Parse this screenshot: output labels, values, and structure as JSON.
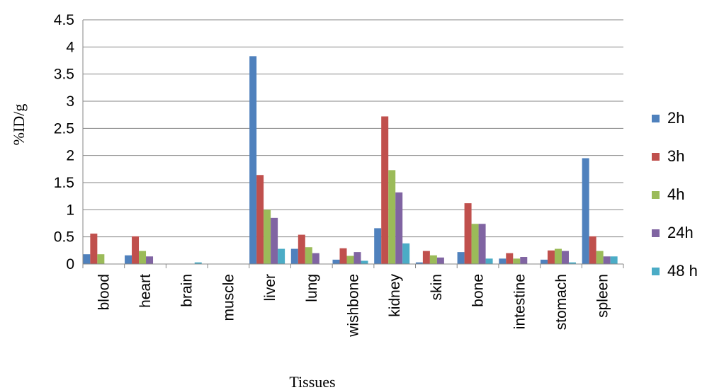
{
  "chart_data": {
    "type": "bar",
    "title": "",
    "xlabel": "Tissues",
    "ylabel": "%ID/g",
    "ylim": [
      0,
      4.5
    ],
    "yticks": [
      "0",
      "0.5",
      "1",
      "1.5",
      "2",
      "2.5",
      "3",
      "3.5",
      "4",
      "4.5"
    ],
    "grid": true,
    "legend_position": "right",
    "categories": [
      "blood",
      "heart",
      "brain",
      "muscle",
      "liver",
      "lung",
      "wishbone",
      "kidney",
      "skin",
      "bone",
      "intestine",
      "stomach",
      "spleen"
    ],
    "series": [
      {
        "name": "2h",
        "color": "#4F81BD",
        "values": [
          0.18,
          0.16,
          0.0,
          0.0,
          3.83,
          0.28,
          0.08,
          0.66,
          0.03,
          0.22,
          0.1,
          0.08,
          1.95
        ]
      },
      {
        "name": "3h",
        "color": "#C0504D",
        "values": [
          0.56,
          0.51,
          0.0,
          0.0,
          1.64,
          0.54,
          0.29,
          2.72,
          0.24,
          1.12,
          0.2,
          0.25,
          0.51
        ]
      },
      {
        "name": "4h",
        "color": "#9BBB59",
        "values": [
          0.18,
          0.24,
          0.0,
          0.0,
          1.0,
          0.31,
          0.15,
          1.73,
          0.16,
          0.74,
          0.1,
          0.28,
          0.24
        ]
      },
      {
        "name": "24h",
        "color": "#8064A2",
        "values": [
          0.0,
          0.14,
          0.0,
          0.0,
          0.85,
          0.2,
          0.22,
          1.32,
          0.12,
          0.74,
          0.13,
          0.24,
          0.14
        ]
      },
      {
        "name": "48 h",
        "color": "#4BACC6",
        "values": [
          0.0,
          0.0,
          0.03,
          0.0,
          0.28,
          0.0,
          0.06,
          0.38,
          0.0,
          0.1,
          0.0,
          0.03,
          0.14
        ]
      }
    ]
  }
}
